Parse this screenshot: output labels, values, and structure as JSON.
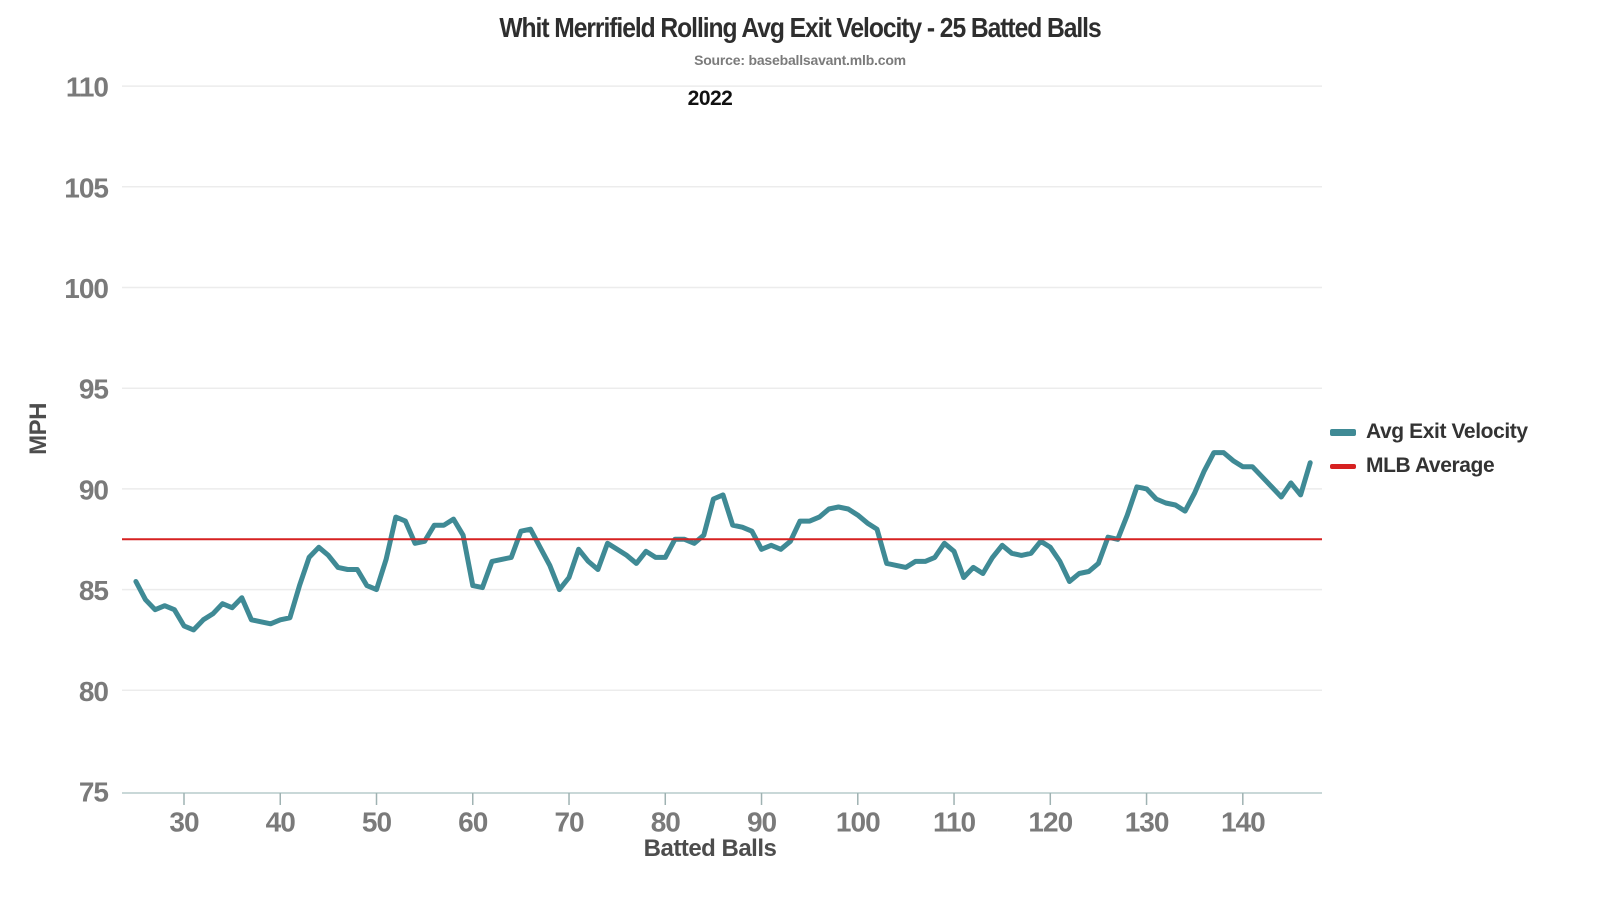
{
  "chart_data": {
    "type": "line",
    "title": "Whit Merrifield Rolling Avg Exit Velocity - 25 Batted Balls",
    "subtitle": "Source: baseballsavant.mlb.com",
    "annotation": "2022",
    "xlabel": "Batted Balls",
    "ylabel": "MPH",
    "x_ticks": [
      30,
      40,
      50,
      60,
      70,
      80,
      90,
      100,
      110,
      120,
      130,
      140
    ],
    "y_ticks": [
      75,
      80,
      85,
      90,
      95,
      100,
      105,
      110
    ],
    "xlim": [
      23.5,
      148.3
    ],
    "ylim": [
      75,
      110.7
    ],
    "grid": "horizontal",
    "legend_position": "right",
    "series": [
      {
        "name": "Avg Exit Velocity",
        "type": "line",
        "color": "#3f8a95",
        "x": [
          25,
          26,
          27,
          28,
          29,
          30,
          31,
          32,
          33,
          34,
          35,
          36,
          37,
          38,
          39,
          40,
          41,
          42,
          43,
          44,
          45,
          46,
          47,
          48,
          49,
          50,
          51,
          52,
          53,
          54,
          55,
          56,
          57,
          58,
          59,
          60,
          61,
          62,
          63,
          64,
          65,
          66,
          67,
          68,
          69,
          70,
          71,
          72,
          73,
          74,
          75,
          76,
          77,
          78,
          79,
          80,
          81,
          82,
          83,
          84,
          85,
          86,
          87,
          88,
          89,
          90,
          91,
          92,
          93,
          94,
          95,
          96,
          97,
          98,
          99,
          100,
          101,
          102,
          103,
          104,
          105,
          106,
          107,
          108,
          109,
          110,
          111,
          112,
          113,
          114,
          115,
          116,
          117,
          118,
          119,
          120,
          121,
          122,
          123,
          124,
          125,
          126,
          127,
          128,
          129,
          130,
          131,
          132,
          133,
          134,
          135,
          136,
          137,
          138,
          139,
          140,
          141,
          142,
          143,
          144,
          145,
          146,
          147
        ],
        "values": [
          85.4,
          84.5,
          84.0,
          84.2,
          84.0,
          83.2,
          83.0,
          83.5,
          83.8,
          84.3,
          84.1,
          84.6,
          83.5,
          83.4,
          83.3,
          83.5,
          83.6,
          85.2,
          86.6,
          87.1,
          86.7,
          86.1,
          86.0,
          86.0,
          85.2,
          85.0,
          86.5,
          88.6,
          88.4,
          87.3,
          87.4,
          88.2,
          88.2,
          88.5,
          87.7,
          85.2,
          85.1,
          86.4,
          86.5,
          86.6,
          87.9,
          88.0,
          87.1,
          86.2,
          85.0,
          85.6,
          87.0,
          86.4,
          86.0,
          87.3,
          87.0,
          86.7,
          86.3,
          86.9,
          86.6,
          86.6,
          87.5,
          87.5,
          87.3,
          87.7,
          89.5,
          89.7,
          88.2,
          88.1,
          87.9,
          87.0,
          87.2,
          87.0,
          87.4,
          88.4,
          88.4,
          88.6,
          89.0,
          89.1,
          89.0,
          88.7,
          88.3,
          88.0,
          86.3,
          86.2,
          86.1,
          86.4,
          86.4,
          86.6,
          87.3,
          86.9,
          85.6,
          86.1,
          85.8,
          86.6,
          87.2,
          86.8,
          86.7,
          86.8,
          87.4,
          87.1,
          86.4,
          85.4,
          85.8,
          85.9,
          86.3,
          87.6,
          87.5,
          88.7,
          90.1,
          90.0,
          89.5,
          89.3,
          89.2,
          88.9,
          89.8,
          90.9,
          91.8,
          91.8,
          91.4,
          91.1,
          91.1,
          90.6,
          90.1,
          89.6,
          90.3,
          89.7,
          91.3
        ]
      },
      {
        "name": "MLB Average",
        "type": "hline",
        "color": "#d62121",
        "value": 87.5
      }
    ]
  },
  "colors": {
    "grid": "#ececec",
    "axis_line": "#c9d8d8",
    "tick_mark": "#9fb2b2",
    "tick_label": "#7a7a7a",
    "axis_label": "#4d4d4d",
    "title": "#2e2e2e",
    "subtitle": "#7b7b7b",
    "annotation": "#111111",
    "background": "#ffffff"
  }
}
